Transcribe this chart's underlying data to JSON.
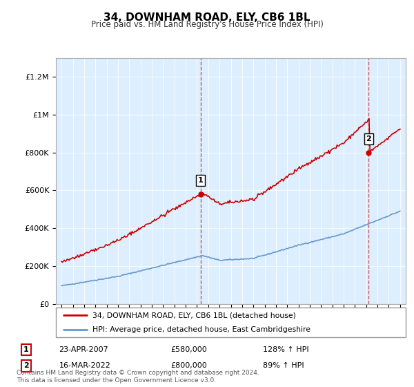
{
  "title": "34, DOWNHAM ROAD, ELY, CB6 1BL",
  "subtitle": "Price paid vs. HM Land Registry's House Price Index (HPI)",
  "legend_line1": "34, DOWNHAM ROAD, ELY, CB6 1BL (detached house)",
  "legend_line2": "HPI: Average price, detached house, East Cambridgeshire",
  "sale1_date": "23-APR-2007",
  "sale1_price": "£580,000",
  "sale1_hpi": "128% ↑ HPI",
  "sale2_date": "16-MAR-2022",
  "sale2_price": "£800,000",
  "sale2_hpi": "89% ↑ HPI",
  "copyright": "Contains HM Land Registry data © Crown copyright and database right 2024.\nThis data is licensed under the Open Government Licence v3.0.",
  "red_color": "#cc0000",
  "blue_color": "#6699cc",
  "dashed_red": "#cc4444",
  "background_plot": "#ddeeff",
  "sale1_year": 2007.31,
  "sale2_year": 2022.21,
  "sale1_price_val": 580000,
  "sale2_price_val": 800000,
  "ylim": [
    0,
    1300000
  ],
  "xlim": [
    1994.5,
    2025.5
  ],
  "hpi_keypoints_x": [
    1995,
    2000,
    2007.5,
    2009,
    2012,
    2016,
    2020,
    2025
  ],
  "hpi_keypoints_y": [
    95000,
    145000,
    255000,
    230000,
    240000,
    310000,
    370000,
    490000
  ]
}
